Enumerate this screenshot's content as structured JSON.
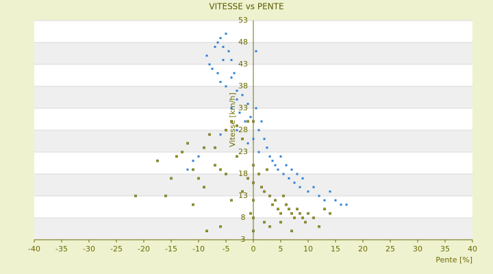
{
  "chart_data": {
    "type": "scatter",
    "title": "VITESSE vs PENTE",
    "x_label": "Pente [%]",
    "y_label": "Vitesse [km/h]",
    "xlim": [
      -40,
      40
    ],
    "xticks": [
      -40,
      -35,
      -30,
      -25,
      -20,
      -15,
      -10,
      -5,
      0,
      5,
      10,
      15,
      20,
      25,
      30,
      35,
      40
    ],
    "ylim": [
      3,
      53
    ],
    "yticks": [
      3,
      8,
      13,
      18,
      23,
      28,
      33,
      38,
      43,
      48,
      53
    ],
    "grid": true,
    "series": [
      {
        "color": "#2f7fd6",
        "x": [
          -7,
          -6.5,
          -6,
          -5.5,
          -5,
          -4.5,
          -4,
          -3.5,
          -8.5,
          -8,
          -7.5,
          -6,
          -5,
          -4,
          -3,
          -2,
          -1,
          -0.5,
          0.5,
          -1.5,
          -2.5,
          -3,
          -4,
          -5.5,
          -6.5,
          0.5,
          1,
          1.5,
          2,
          2.5,
          3,
          3.5,
          4,
          4.5,
          5,
          5.5,
          6,
          6.5,
          7,
          7.5,
          8,
          8.5,
          9,
          10,
          11,
          12,
          13,
          14,
          15,
          16,
          17,
          -9,
          -10,
          -11,
          -12,
          -6,
          -3,
          -1,
          1,
          0
        ],
        "values": [
          47,
          48,
          49,
          47,
          50,
          46,
          44,
          41,
          45,
          43,
          42,
          39,
          38,
          40,
          37,
          36,
          34,
          31,
          33,
          30,
          32,
          35,
          33,
          44,
          41,
          46,
          28,
          30,
          26,
          24,
          22,
          21,
          20,
          19,
          22,
          18,
          20,
          17,
          19,
          16,
          18,
          15,
          17,
          14,
          15,
          13,
          12,
          14,
          12,
          11,
          11,
          24,
          22,
          21,
          19,
          27,
          28,
          25,
          23,
          26
        ]
      },
      {
        "color": "#9a9a1a",
        "x": [
          -21.5,
          -17.5,
          -16,
          -15,
          -14,
          -13,
          -12,
          -11,
          -10,
          -9,
          -8,
          -7,
          -6,
          -5,
          -4,
          -3,
          -2,
          -1,
          0,
          0,
          0,
          0,
          0,
          0,
          1,
          1.5,
          2,
          2.5,
          3,
          3.5,
          4,
          4.5,
          5,
          5.5,
          6,
          6.5,
          7,
          7.5,
          8,
          8.5,
          9,
          9.5,
          10,
          11,
          12,
          13,
          14,
          -8.5,
          -6,
          -4,
          -2,
          -1,
          -3,
          -5,
          -7,
          -11,
          -9,
          2,
          3,
          5,
          7,
          -0.5
        ],
        "values": [
          13,
          21,
          13,
          17,
          22,
          23,
          25,
          19,
          17,
          15,
          27,
          24,
          19,
          28,
          30,
          22,
          26,
          17,
          5,
          8,
          12,
          16,
          20,
          30,
          18,
          15,
          14,
          19,
          13,
          11,
          12,
          10,
          9,
          13,
          11,
          10,
          9,
          8,
          10,
          9,
          8,
          7,
          9,
          8,
          6,
          10,
          9,
          5,
          6,
          12,
          14,
          30,
          29,
          18,
          20,
          11,
          24,
          7,
          6,
          7,
          5,
          9
        ]
      }
    ]
  }
}
